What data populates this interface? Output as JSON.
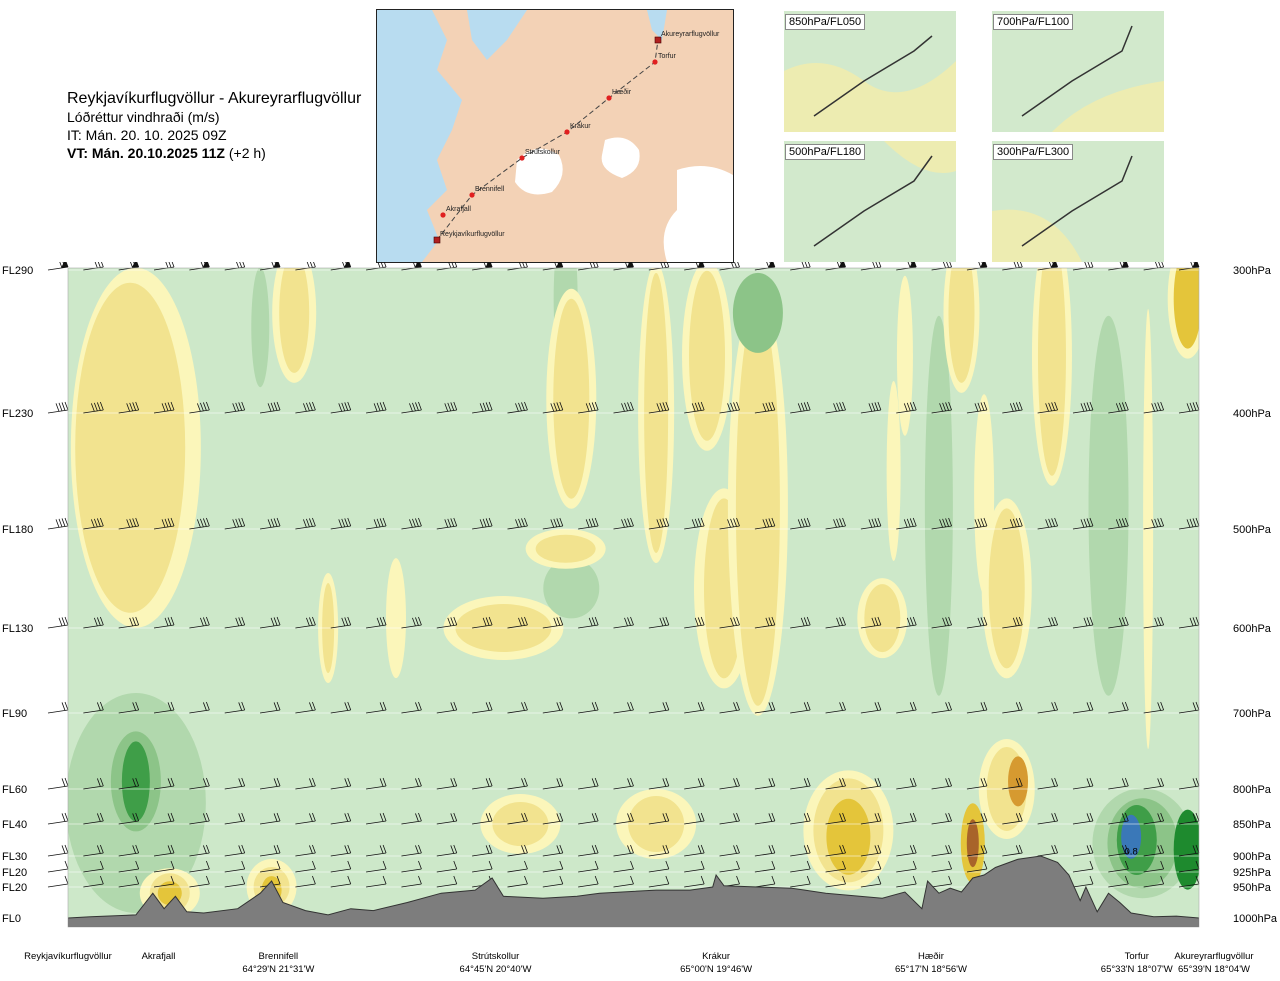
{
  "header": {
    "title": "Reykjavíkurflugvöllur - Akureyrarflugvöllur",
    "subtitle": "Lóðréttur vindhraði (m/s)",
    "it_line": "IT: Mán. 20. 10. 2025 09Z",
    "vt_bold": "VT: Mán. 20.10.2025 11Z",
    "vt_suffix": "(+2 h)"
  },
  "map": {
    "places": [
      {
        "name": "Akureyrarflugvöllur"
      },
      {
        "name": "Torfur"
      },
      {
        "name": "Hæðir"
      },
      {
        "name": "Krákur"
      },
      {
        "name": "Strútskollur"
      },
      {
        "name": "Brennifell"
      },
      {
        "name": "Akrafjall"
      },
      {
        "name": "Reykjavíkurflugvöllur"
      }
    ]
  },
  "mini_maps": [
    {
      "label": "850hPa/FL050"
    },
    {
      "label": "700hPa/FL100"
    },
    {
      "label": "500hPa/FL180"
    },
    {
      "label": "300hPa/FL300"
    }
  ],
  "chart_data": {
    "type": "heatmap",
    "title": "Lóðréttur vindhraði (m/s)",
    "left_axis": [
      {
        "fl": "FL290",
        "hpa": 300
      },
      {
        "fl": "FL230",
        "hpa": 400
      },
      {
        "fl": "FL180",
        "hpa": 500
      },
      {
        "fl": "FL130",
        "hpa": 600
      },
      {
        "fl": "FL90",
        "hpa": 700
      },
      {
        "fl": "FL60",
        "hpa": 800
      },
      {
        "fl": "FL40",
        "hpa": 850
      },
      {
        "fl": "FL30",
        "hpa": 900
      },
      {
        "fl": "FL20",
        "hpa": 925
      },
      {
        "fl": "FL20",
        "hpa": 950
      },
      {
        "fl": "FL0",
        "hpa": 1000
      }
    ],
    "right_axis": [
      "300hPa",
      "400hPa",
      "500hPa",
      "600hPa",
      "700hPa",
      "800hPa",
      "850hPa",
      "900hPa",
      "925hPa",
      "950hPa",
      "1000hPa"
    ],
    "locations": [
      {
        "name": "Reykjavíkurflugvöllur",
        "coord": "",
        "pos": 0.0
      },
      {
        "name": "Akrafjall",
        "coord": "",
        "pos": 0.08
      },
      {
        "name": "Brennifell",
        "coord": "64°29'N 21°31'W",
        "pos": 0.186
      },
      {
        "name": "Strútskollur",
        "coord": "64°45'N 20°40'W",
        "pos": 0.378
      },
      {
        "name": "Krákur",
        "coord": "65°00'N 19°46'W",
        "pos": 0.573
      },
      {
        "name": "Hæðir",
        "coord": "65°17'N 18°56'W",
        "pos": 0.763
      },
      {
        "name": "Torfur",
        "coord": "65°33'N 18°07'W",
        "pos": 0.945
      },
      {
        "name": "Akureyrarflugvöllur",
        "coord": "65°39'N 18°04'W",
        "pos": 1.0
      }
    ],
    "annotations": [
      {
        "text": "0.8"
      }
    ],
    "colors": {
      "background": "#cde8c9",
      "light_green": "#b1d8ad",
      "mid_green": "#8cc488",
      "dark_green": "#3f9e48",
      "strong_green": "#1e8a2e",
      "pale_yellow": "#fbf6ba",
      "yellow": "#f2e38f",
      "dark_yellow": "#e4c53a",
      "orange": "#d69a30",
      "brown": "#a8642a",
      "blue": "#3a78b8",
      "terrain": "#7d7d7d"
    }
  }
}
